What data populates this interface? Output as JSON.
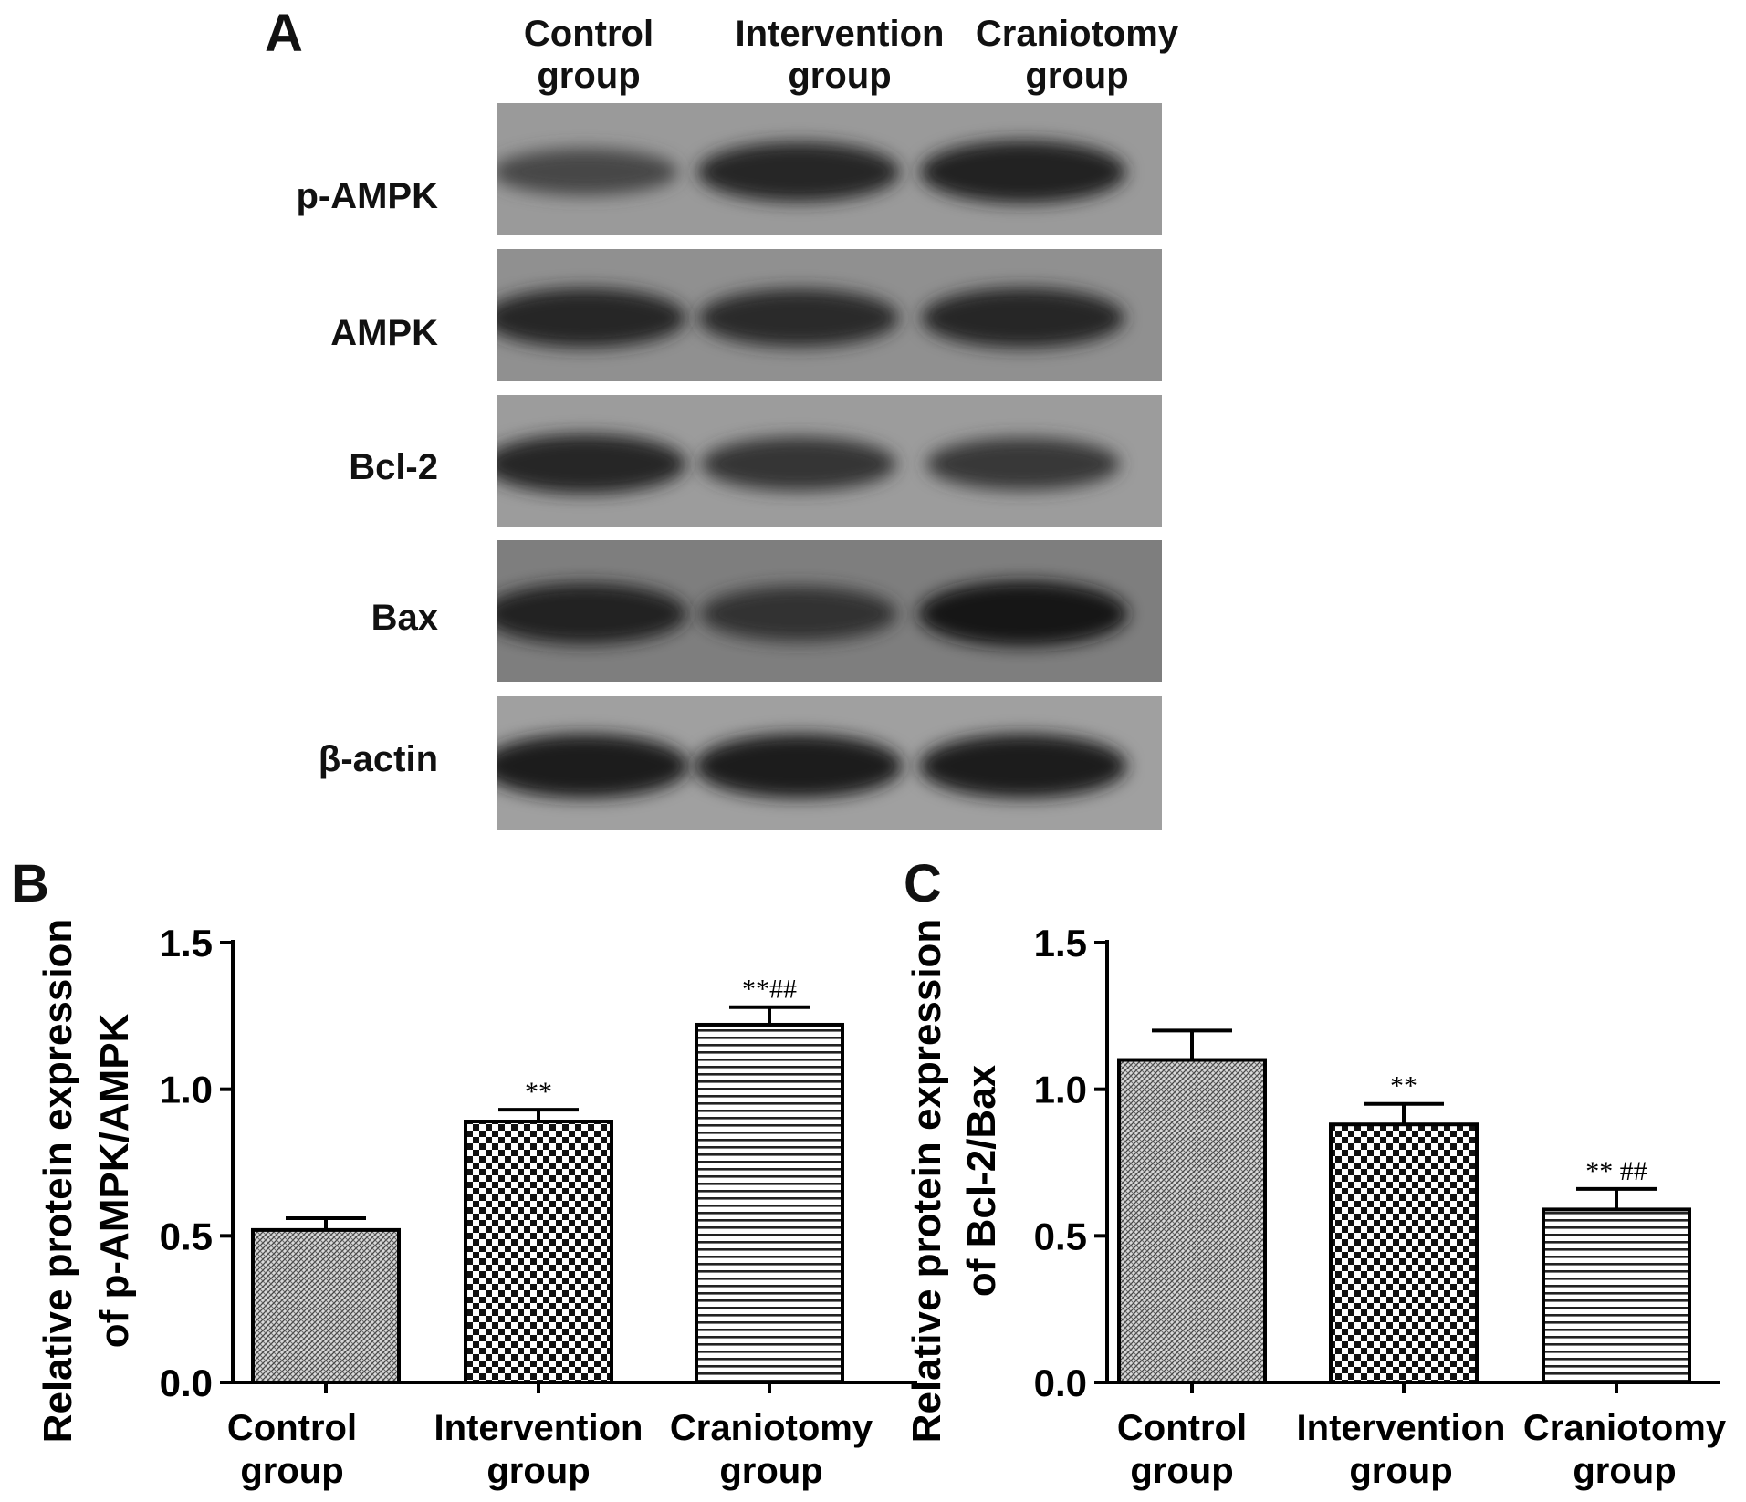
{
  "panel_letters": {
    "a": "A",
    "b": "B",
    "c": "C"
  },
  "blot": {
    "lanes": [
      {
        "line1": "Control",
        "line2": "group"
      },
      {
        "line1": "Intervention",
        "line2": "group"
      },
      {
        "line1": "Craniotomy",
        "line2": "group"
      }
    ],
    "rows": [
      {
        "label": "p-AMPK",
        "intensity": [
          0.35,
          0.8,
          0.9
        ],
        "bg": "#9a9a9a"
      },
      {
        "label": "AMPK",
        "intensity": [
          0.8,
          0.75,
          0.82
        ],
        "bg": "#909090"
      },
      {
        "label": "Bcl-2",
        "intensity": [
          0.8,
          0.6,
          0.55
        ],
        "bg": "#9c9c9c"
      },
      {
        "label": "Bax",
        "intensity": [
          0.85,
          0.65,
          1.0
        ],
        "bg": "#7e7e7e"
      },
      {
        "label": "β-actin",
        "intensity": [
          0.95,
          0.95,
          0.95
        ],
        "bg": "#a0a0a0"
      }
    ]
  },
  "chart_data": [
    {
      "type": "bar",
      "panel": "B",
      "ylabel_line1": "Relative protein expression",
      "ylabel_line2": "of p-AMPK/AMPK",
      "xlabel": "",
      "ylim": [
        0,
        1.5
      ],
      "yticks": [
        "0.0",
        "0.5",
        "1.0",
        "1.5"
      ],
      "categories": [
        {
          "line1": "Control",
          "line2": "group"
        },
        {
          "line1": "Intervention",
          "line2": "group"
        },
        {
          "line1": "Craniotomy",
          "line2": "group"
        }
      ],
      "values": [
        0.52,
        0.89,
        1.22
      ],
      "errors": [
        0.04,
        0.04,
        0.06
      ],
      "annotations": [
        "",
        "**",
        "**##"
      ],
      "patterns": [
        "dense",
        "checker",
        "hlines"
      ]
    },
    {
      "type": "bar",
      "panel": "C",
      "ylabel_line1": "Relative protein expression",
      "ylabel_line2": "of Bcl-2/Bax",
      "xlabel": "",
      "ylim": [
        0,
        1.5
      ],
      "yticks": [
        "0.0",
        "0.5",
        "1.0",
        "1.5"
      ],
      "categories": [
        {
          "line1": "Control",
          "line2": "group"
        },
        {
          "line1": "Intervention",
          "line2": "group"
        },
        {
          "line1": "Craniotomy",
          "line2": "group"
        }
      ],
      "values": [
        1.1,
        0.88,
        0.59
      ],
      "errors": [
        0.1,
        0.07,
        0.07
      ],
      "annotations": [
        "",
        "**",
        "** ##"
      ],
      "patterns": [
        "dense",
        "checker",
        "hlines"
      ]
    }
  ]
}
